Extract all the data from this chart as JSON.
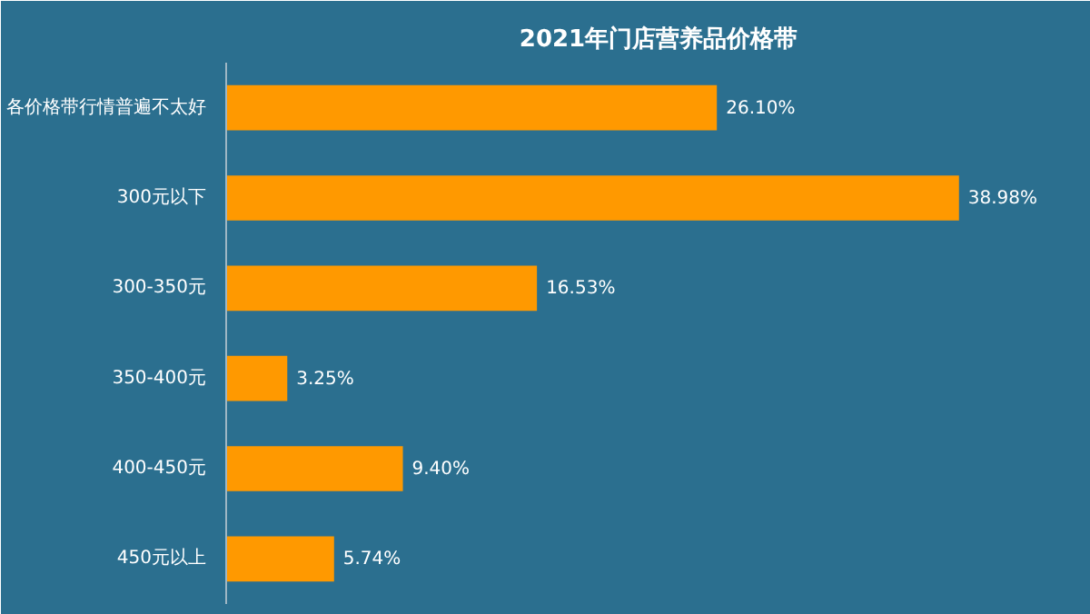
{
  "chart_data": {
    "type": "bar",
    "orientation": "horizontal",
    "title": "2021年门店营养品价格带",
    "categories": [
      "各价格带行情普遍不太好",
      "300元以下",
      "300-350元",
      "350-400元",
      "400-450元",
      "450元以上"
    ],
    "values": [
      26.1,
      38.98,
      16.53,
      3.25,
      9.4,
      5.74
    ],
    "value_labels": [
      "26.10%",
      "38.98%",
      "16.53%",
      "3.25%",
      "9.40%",
      "5.74%"
    ],
    "color": "#ff9900",
    "grid": false
  }
}
